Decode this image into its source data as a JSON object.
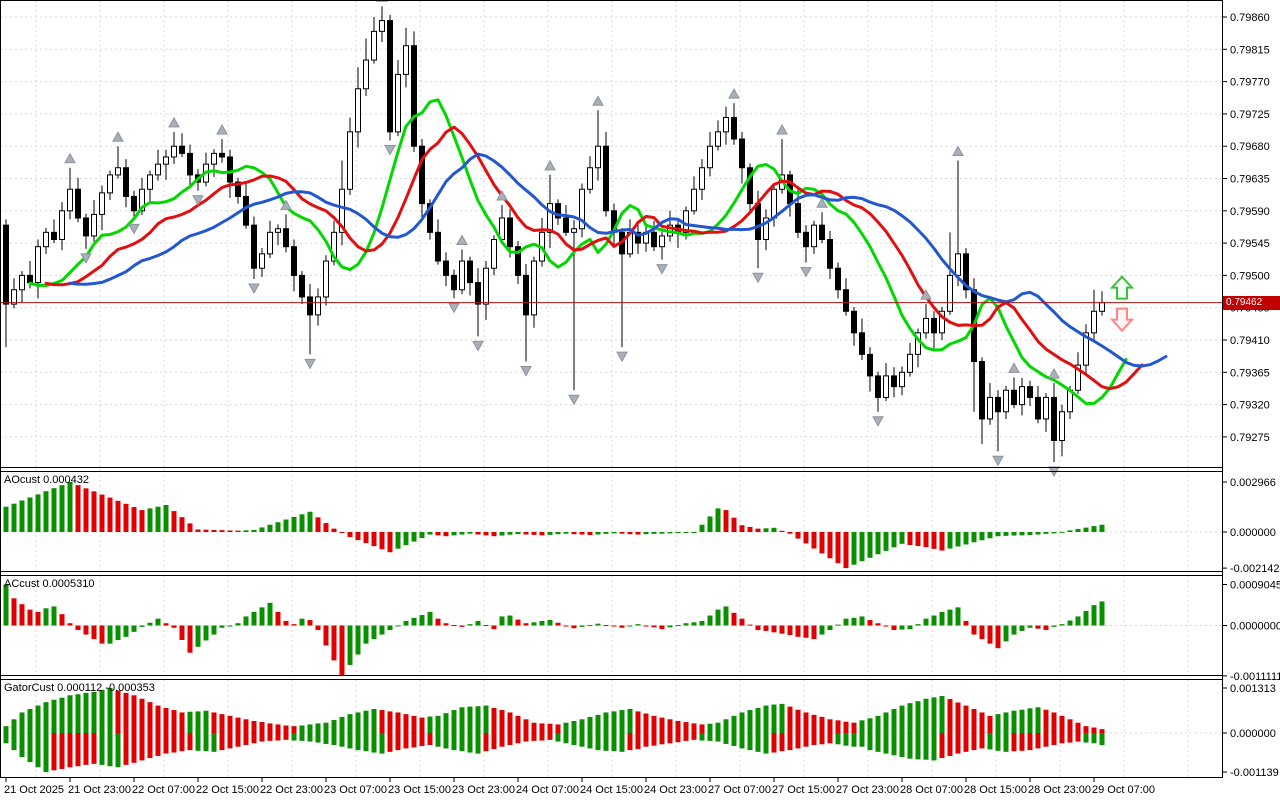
{
  "price_axis": {
    "ticks": [
      "0.79860",
      "0.79815",
      "0.79770",
      "0.79725",
      "0.79680",
      "0.79635",
      "0.79590",
      "0.79545",
      "0.79500",
      "0.79455",
      "0.79410",
      "0.79365",
      "0.79320",
      "0.79275"
    ],
    "current": "0.79462"
  },
  "time_axis": {
    "labels": [
      "21 Oct 2025",
      "21 Oct 23:00",
      "22 Oct 07:00",
      "22 Oct 15:00",
      "22 Oct 23:00",
      "23 Oct 07:00",
      "23 Oct 15:00",
      "23 Oct 23:00",
      "24 Oct 07:00",
      "24 Oct 15:00",
      "24 Oct 23:00",
      "27 Oct 07:00",
      "27 Oct 15:00",
      "27 Oct 23:00",
      "28 Oct 07:00",
      "28 Oct 15:00",
      "28 Oct 23:00",
      "29 Oct 07:00"
    ]
  },
  "panels": {
    "ao": {
      "label": "AOcust 0.000432",
      "axis": [
        0.002966,
        0.0,
        -0.002142
      ],
      "axis_text": [
        "0.002966",
        "0.000000",
        "-0.002142"
      ]
    },
    "ac": {
      "label": "ACcust 0.0005310",
      "axis": [
        0.0009045,
        0.0,
        -0.0011111
      ],
      "axis_text": [
        "0.0009045",
        "0.0000000",
        "-0.0011111"
      ]
    },
    "gator": {
      "label": "GatorCust 0.000112 -0.000353",
      "axis": [
        0.001313,
        0.0,
        -0.001139
      ],
      "axis_text": [
        "0.001313",
        "0.000000",
        "-0.001139"
      ]
    }
  },
  "colors": {
    "grid": "#d9d9d9",
    "axis_line": "#000000",
    "bull_body": "#ffffff",
    "bear_body": "#000000",
    "candle_outline": "#000000",
    "lips_green": "#00d800",
    "teeth_red": "#e01010",
    "jaw_blue": "#2257d0",
    "hist_up": "#089000",
    "hist_down": "#e00000",
    "price_line": "#b01212",
    "price_tag_bg": "#c00000",
    "price_tag_text": "#ffffff",
    "fractal": "#aab0ba",
    "signal_up": "#3fbf3f",
    "signal_down": "#ff8585"
  },
  "chart_data": [
    {
      "type": "candlestick",
      "timeframe_categories": [
        "21 Oct 2025",
        "21 Oct 23:00",
        "22 Oct 07:00",
        "22 Oct 15:00",
        "22 Oct 23:00",
        "23 Oct 07:00",
        "23 Oct 15:00",
        "23 Oct 23:00",
        "24 Oct 07:00",
        "24 Oct 15:00",
        "24 Oct 23:00",
        "27 Oct 07:00",
        "27 Oct 15:00",
        "27 Oct 23:00",
        "28 Oct 07:00",
        "28 Oct 15:00",
        "28 Oct 23:00",
        "29 Oct 07:00"
      ],
      "bars_per_tick": 8,
      "ylim": [
        0.79239,
        0.79882
      ],
      "price_scale": 1e-05,
      "first_open": 79570,
      "open_rule": "previous_close",
      "closes": [
        79460,
        79480,
        79500,
        79490,
        79540,
        79560,
        79550,
        79590,
        79620,
        79580,
        79555,
        79585,
        79615,
        79640,
        79650,
        79610,
        79590,
        79620,
        79640,
        79655,
        79665,
        79680,
        79670,
        79640,
        79630,
        79655,
        79670,
        79665,
        79630,
        79610,
        79570,
        79510,
        79530,
        79560,
        79565,
        79540,
        79500,
        79470,
        79445,
        79470,
        79520,
        79560,
        79620,
        79700,
        79760,
        79800,
        79840,
        79855,
        79700,
        79780,
        79820,
        79680,
        79600,
        79560,
        79520,
        79500,
        79480,
        79520,
        79490,
        79460,
        79510,
        79550,
        79580,
        79540,
        79500,
        79445,
        79520,
        79560,
        79600,
        79580,
        79560,
        79565,
        79620,
        79650,
        79680,
        79590,
        79560,
        79530,
        79560,
        79545,
        79560,
        79540,
        79555,
        79570,
        79560,
        79590,
        79620,
        79650,
        79680,
        79700,
        79720,
        79690,
        79650,
        79600,
        79550,
        79580,
        79620,
        79640,
        79600,
        79560,
        79540,
        79570,
        79550,
        79510,
        79480,
        79450,
        79420,
        79390,
        79360,
        79330,
        79360,
        79345,
        79365,
        79390,
        79420,
        79440,
        79420,
        79450,
        79500,
        79530,
        79480,
        79380,
        79300,
        79330,
        79310,
        79340,
        79320,
        79345,
        79330,
        79300,
        79330,
        79270,
        79310,
        79340,
        79375,
        79420,
        79450,
        79462
      ],
      "wick_up_pattern": [
        8,
        16,
        6,
        20,
        10,
        6,
        18,
        12
      ],
      "wick_dn_pattern": [
        12,
        6,
        18,
        8,
        22,
        10,
        5,
        15
      ],
      "special_highs": {
        "8": 79650,
        "14": 79680,
        "21": 79700,
        "27": 79690,
        "42": 79660,
        "43": 79720,
        "44": 79790,
        "45": 79830,
        "46": 79860,
        "47": 79875,
        "49": 79800,
        "50": 79845,
        "68": 79640,
        "74": 79730,
        "88": 79700,
        "90": 79735,
        "97": 79690,
        "118": 79560,
        "119": 79660,
        "136": 79480
      },
      "special_lows": {
        "0": 79400,
        "38": 79390,
        "59": 79415,
        "65": 79380,
        "71": 79340,
        "77": 79400,
        "94": 79510,
        "109": 79310,
        "121": 79310,
        "122": 79265,
        "124": 79255,
        "131": 79240
      },
      "overlays": [
        {
          "name": "alligator-lips",
          "type": "smma_median",
          "period": 5,
          "shift": 3,
          "color": "#00d800"
        },
        {
          "name": "alligator-teeth",
          "type": "smma_median",
          "period": 8,
          "shift": 5,
          "color": "#e01010"
        },
        {
          "name": "alligator-jaw",
          "type": "smma_median",
          "period": 13,
          "shift": 8,
          "color": "#2257d0"
        }
      ],
      "fractals_rule": "local_extrema_window_2",
      "current_price": 0.79462,
      "signals": [
        {
          "dir": "up"
        },
        {
          "dir": "down"
        }
      ]
    },
    {
      "type": "bar",
      "title": "AOcust",
      "last_value": 0.000432,
      "ylim": [
        -0.002142,
        0.002966
      ],
      "value_scale": 0.0001,
      "values": [
        15,
        16.8,
        18.7,
        20.5,
        22.3,
        24.2,
        26,
        27.8,
        29.66,
        27.8,
        25.9,
        24.1,
        22.2,
        20.4,
        18.5,
        16.7,
        14.8,
        13,
        14,
        15,
        16,
        12.4,
        8.8,
        5.1,
        1.5,
        1.4,
        1.2,
        1.1,
        0.9,
        0.8,
        1,
        1.2,
        2.7,
        4.3,
        5.8,
        7.4,
        8.9,
        10.5,
        12,
        8.7,
        5.3,
        2,
        -0.5,
        -3,
        -4.8,
        -6.6,
        -8.4,
        -10.2,
        -12,
        -9.9,
        -7.8,
        -5.7,
        -3.6,
        -1.5,
        -2,
        -2.5,
        -2,
        -1.5,
        -1,
        -1.5,
        -2,
        -2.5,
        -2.1,
        -1.6,
        -1.2,
        -1.5,
        -1.7,
        -2,
        -1.7,
        -1.3,
        -1,
        -1.3,
        -1.5,
        -1.8,
        -1.5,
        -1.1,
        -0.8,
        -1,
        -1.3,
        -1.5,
        -1.3,
        -1.1,
        -1,
        -0.8,
        -0.6,
        -0.5,
        -0.5,
        4.3,
        9.2,
        14,
        13,
        8.5,
        4,
        3,
        2,
        2.2,
        2.5,
        0.7,
        -1,
        -3.9,
        -6.8,
        -9.8,
        -12.7,
        -15.6,
        -18.5,
        -21.42,
        -19.4,
        -17.3,
        -15.3,
        -13.2,
        -11.2,
        -9.1,
        -7,
        -7.7,
        -8.3,
        -9,
        -10,
        -11,
        -9.8,
        -8.6,
        -7.4,
        -6.1,
        -4.9,
        -3.7,
        -2.5,
        -2.3,
        -2.1,
        -2,
        -1.8,
        -1.5,
        -1.1,
        -0.8,
        0.1,
        1,
        1.8,
        2.6,
        3.5,
        4.32
      ]
    },
    {
      "type": "bar",
      "title": "ACcust",
      "last_value": 0.000531,
      "ylim": [
        -0.0011111,
        0.0009045
      ],
      "value_scale": 0.0001,
      "values": [
        9.05,
        6,
        4.7,
        3.5,
        3,
        3.8,
        4.2,
        2.5,
        0.5,
        -1,
        -2,
        -3,
        -4,
        -4,
        -3.2,
        -2.5,
        -1.4,
        -0.3,
        0.6,
        1.5,
        0.5,
        -0.5,
        -3.2,
        -6,
        -4.7,
        -3.3,
        -2,
        -0.5,
        0,
        0.5,
        2,
        3,
        4,
        5,
        3,
        1,
        0.3,
        1.5,
        1.2,
        -1,
        -4.4,
        -7.7,
        -11.11,
        -8.7,
        -6.4,
        -4,
        -3,
        -2,
        -1,
        0,
        1,
        1.7,
        2.3,
        3,
        1.5,
        0.5,
        0.1,
        -0.3,
        0.3,
        1,
        0.1,
        -0.8,
        2,
        2.2,
        1.3,
        0.5,
        0.7,
        1,
        1.2,
        0.6,
        0,
        -0.6,
        -0.3,
        0.1,
        0.4,
        0.1,
        -0.2,
        -0.5,
        -0.1,
        0.3,
        -0.1,
        -0.4,
        -0.8,
        -0.4,
        0.1,
        0.5,
        0.7,
        1,
        2.2,
        3.5,
        4.2,
        2.8,
        1.5,
        0.2,
        -1,
        -1.2,
        -1.5,
        -1.8,
        -2.1,
        -2.5,
        -2.7,
        -3,
        -2,
        -1,
        0.2,
        1.5,
        1.7,
        2,
        1.2,
        0.5,
        -0.2,
        -1,
        -0.9,
        -0.8,
        0.3,
        1.5,
        2.2,
        3,
        3.5,
        4,
        1,
        -2,
        -3,
        -4,
        -5,
        -3.5,
        -2,
        -1.2,
        -0.5,
        -0.7,
        -1,
        -0.3,
        0.3,
        1.1,
        2,
        3.2,
        4.5,
        5.31
      ]
    },
    {
      "type": "bar",
      "title": "GatorCust",
      "last_values": [
        0.000112,
        -0.000353
      ],
      "ylim": [
        -0.001139,
        0.001313
      ],
      "value_scale": 0.0001,
      "upper": [
        2,
        4,
        6,
        7,
        8,
        9,
        9.7,
        10.3,
        11,
        11.3,
        11.7,
        12,
        12.6,
        13.13,
        12.4,
        11.7,
        11,
        10,
        9,
        8,
        7.3,
        6.7,
        6,
        6.2,
        6.3,
        6.5,
        6,
        5.5,
        5,
        4.5,
        4,
        3.5,
        3.2,
        2.8,
        2.5,
        2.2,
        2,
        2.2,
        2.5,
        2.8,
        3,
        3.8,
        4.7,
        5.5,
        6,
        6.5,
        7,
        6.7,
        6.3,
        6,
        5.5,
        5,
        4.5,
        4.8,
        5,
        5.8,
        6.7,
        7.5,
        7.7,
        7.8,
        8,
        7.3,
        6.7,
        6,
        5,
        4,
        3,
        2.8,
        2.7,
        2.5,
        3,
        3.5,
        4,
        4.7,
        5.3,
        6,
        6.3,
        6.7,
        7,
        6.3,
        5.7,
        5,
        4.5,
        4,
        3.5,
        3.2,
        2.8,
        2.5,
        2.7,
        3,
        4,
        5,
        6,
        6.7,
        7.3,
        8,
        8.3,
        8.5,
        7.7,
        6.8,
        6,
        5.3,
        4.7,
        4,
        3.7,
        3.3,
        3,
        3.7,
        4.3,
        5,
        6,
        7,
        8,
        8.7,
        9.3,
        10,
        10.4,
        10.8,
        9.9,
        8.9,
        8,
        7,
        6,
        5,
        5.5,
        6,
        6.5,
        6.8,
        7.2,
        7.5,
        6.8,
        6,
        5,
        4,
        3,
        2,
        1.6,
        1.12
      ],
      "lower": [
        -3,
        -5,
        -7,
        -8.5,
        -10,
        -11.39,
        -10.9,
        -10.5,
        -10,
        -9.7,
        -9.3,
        -9,
        -9.3,
        -9.7,
        -10,
        -9.3,
        -8.7,
        -8,
        -7.3,
        -6.7,
        -6,
        -5.7,
        -5.3,
        -5,
        -5.2,
        -5.3,
        -5.5,
        -5,
        -4.5,
        -4,
        -3.5,
        -3,
        -2.5,
        -2.3,
        -2.2,
        -2,
        -2.2,
        -2.3,
        -2.5,
        -2.8,
        -3.2,
        -3.5,
        -4,
        -4.5,
        -5,
        -5.3,
        -5.7,
        -6,
        -5.5,
        -5,
        -4.5,
        -4.2,
        -3.8,
        -3.5,
        -4,
        -4.5,
        -5,
        -5.3,
        -5.7,
        -6,
        -5.3,
        -4.7,
        -4,
        -3.5,
        -3,
        -2.5,
        -2.3,
        -2.2,
        -2,
        -2.5,
        -3,
        -3.5,
        -4,
        -4.5,
        -5,
        -5.2,
        -5.3,
        -5.5,
        -5,
        -4.7,
        -4,
        -3.7,
        -3.3,
        -3,
        -2.7,
        -2.3,
        -2,
        -2.2,
        -2.3,
        -2.5,
        -3.2,
        -3.8,
        -4.5,
        -5,
        -5.5,
        -6,
        -5.7,
        -5.3,
        -5,
        -4.5,
        -4,
        -3.5,
        -3.3,
        -3,
        -3.3,
        -3.7,
        -4,
        -4,
        -5,
        -5.5,
        -6,
        -6.5,
        -7,
        -7.5,
        -7.7,
        -7.8,
        -8,
        -7.3,
        -6.7,
        -6,
        -5.5,
        -5,
        -4.5,
        -4.8,
        -5.2,
        -5.5,
        -5.3,
        -5.2,
        -5,
        -4.5,
        -4,
        -3.5,
        -3,
        -2.8,
        -2.5,
        -2.8,
        -3,
        -3.53
      ]
    }
  ]
}
